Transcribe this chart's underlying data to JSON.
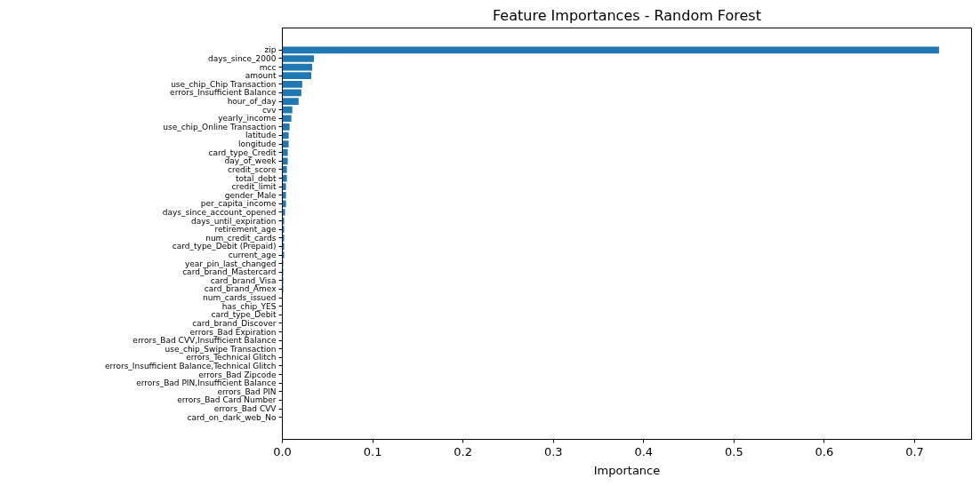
{
  "chart_data": {
    "type": "bar",
    "orientation": "horizontal",
    "title": "Feature Importances - Random Forest",
    "xlabel": "Importance",
    "categories": [
      "zip",
      "days_since_2000",
      "mcc",
      "amount",
      "use_chip_Chip Transaction",
      "errors_Insufficient Balance",
      "hour_of_day",
      "cvv",
      "yearly_income",
      "use_chip_Online Transaction",
      "latitude",
      "longitude",
      "card_type_Credit",
      "day_of_week",
      "credit_score",
      "total_debt",
      "credit_limit",
      "gender_Male",
      "per_capita_income",
      "days_since_account_opened",
      "days_until_expiration",
      "retirement_age",
      "num_credit_cards",
      "card_type_Debit (Prepaid)",
      "current_age",
      "year_pin_last_changed",
      "card_brand_Mastercard",
      "card_brand_Visa",
      "card_brand_Amex",
      "num_cards_issued",
      "has_chip_YES",
      "card_type_Debit",
      "card_brand_Discover",
      "errors_Bad Expiration",
      "errors_Bad CVV,Insufficient Balance",
      "use_chip_Swipe Transaction",
      "errors_Technical Glitch",
      "errors_Insufficient Balance,Technical Glitch",
      "errors_Bad Zipcode",
      "errors_Bad PIN,Insufficient Balance",
      "errors_Bad PIN",
      "errors_Bad Card Number",
      "errors_Bad CVV",
      "card_on_dark_web_No"
    ],
    "values": [
      0.727,
      0.035,
      0.033,
      0.032,
      0.022,
      0.021,
      0.018,
      0.011,
      0.01,
      0.008,
      0.007,
      0.007,
      0.006,
      0.006,
      0.005,
      0.005,
      0.004,
      0.004,
      0.004,
      0.003,
      0.002,
      0.002,
      0.002,
      0.002,
      0.002,
      0.001,
      0.001,
      0.001,
      0.001,
      0,
      0,
      0,
      0,
      0,
      0,
      0,
      0,
      0,
      0,
      0,
      0,
      0,
      0,
      0
    ],
    "color": "#1f77b4",
    "xlim": [
      0,
      0.763
    ],
    "xticks": [
      {
        "value": 0,
        "label": "0.0"
      },
      0.1,
      0.2,
      0.3,
      0.4,
      0.5,
      0.6,
      0.7
    ],
    "grid": false
  }
}
